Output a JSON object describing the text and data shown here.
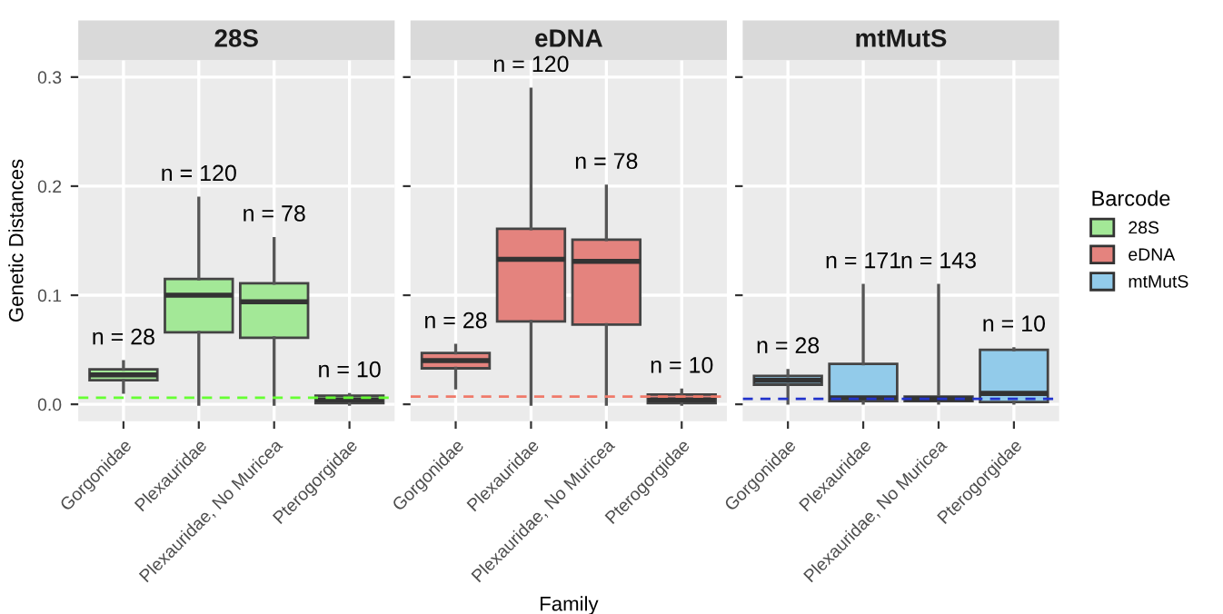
{
  "chart_data": [
    {
      "type": "box",
      "title": "28S",
      "ylabel": "Genetic Distances",
      "categories": [
        "Gorgonidae",
        "Plexauridae",
        "Plexauridae, No Muricea",
        "Pterogorgidae"
      ],
      "ylim": [
        -0.0155,
        0.3155
      ],
      "yticks": [
        {
          "value": 0,
          "label": "0.0"
        },
        0.1,
        0.2,
        0.3
      ],
      "grid": true,
      "series": [
        {
          "name": "28S",
          "color": "#a3e897",
          "boxes": [
            {
              "low": 0.011,
              "q1": 0.022,
              "median": 0.027,
              "q3": 0.032,
              "high": 0.039
            },
            {
              "low": 0,
              "q1": 0.066,
              "median": 0.1,
              "q3": 0.115,
              "high": 0.189
            },
            {
              "low": 0,
              "q1": 0.061,
              "median": 0.094,
              "q3": 0.111,
              "high": 0.152
            },
            {
              "low": 0,
              "q1": 0.001,
              "median": 0.004,
              "q3": 0.008,
              "high": 0.009
            }
          ]
        }
      ],
      "ref_lines": [
        {
          "axis": "y",
          "value": 0.006,
          "color": "#66ff33",
          "line_style": "dashed"
        }
      ],
      "annotations": [
        "n = 28",
        "n = 120",
        "n = 78",
        "n = 10"
      ]
    },
    {
      "type": "box",
      "title": "eDNA",
      "xlabel": "Family",
      "categories": [
        "Gorgonidae",
        "Plexauridae",
        "Plexauridae, No Muricea",
        "Pterogorgidae"
      ],
      "ylim": [
        -0.0155,
        0.3155
      ],
      "yticks": [
        0,
        0.1,
        0.2,
        0.3
      ],
      "grid": true,
      "tick_labels": "x",
      "series": [
        {
          "name": "eDNA",
          "color": "#e4837e",
          "boxes": [
            {
              "low": 0.015,
              "q1": 0.033,
              "median": 0.04,
              "q3": 0.047,
              "high": 0.054
            },
            {
              "low": 0,
              "q1": 0.076,
              "median": 0.133,
              "q3": 0.161,
              "high": 0.289
            },
            {
              "low": 0,
              "q1": 0.073,
              "median": 0.131,
              "q3": 0.151,
              "high": 0.2
            },
            {
              "low": 0,
              "q1": 0.001,
              "median": 0.004,
              "q3": 0.009,
              "high": 0.013
            }
          ]
        }
      ],
      "ref_lines": [
        {
          "axis": "y",
          "value": 0.007,
          "color": "#f07a6a",
          "line_style": "dashed"
        }
      ],
      "annotations": [
        "n = 28",
        "n = 120",
        "n = 78",
        "n = 10"
      ]
    },
    {
      "type": "box",
      "title": "mtMutS",
      "categories": [
        "Gorgonidae",
        "Plexauridae",
        "Plexauridae, No Muricea",
        "Pterogorgidae"
      ],
      "ylim": [
        -0.0155,
        0.3155
      ],
      "yticks": [
        0,
        0.1,
        0.2,
        0.3
      ],
      "grid": true,
      "tick_labels": "x",
      "legend": "right",
      "legend_title": "Barcode",
      "series": [
        {
          "name": "mtMutS",
          "color": "#92cbea",
          "boxes": [
            {
              "low": 0.001,
              "q1": 0.018,
              "median": 0.022,
              "q3": 0.026,
              "high": 0.031
            },
            {
              "low": 0.001,
              "q1": 0.003,
              "median": 0.006,
              "q3": 0.037,
              "high": 0.109
            },
            {
              "low": 0.001,
              "q1": 0.003,
              "median": 0.005,
              "q3": 0.007,
              "high": 0.109
            },
            {
              "low": 0.001,
              "q1": 0.002,
              "median": 0.01,
              "q3": 0.05,
              "high": 0.051
            }
          ]
        }
      ],
      "ref_lines": [
        {
          "axis": "y",
          "value": 0.005,
          "color": "#2233cc",
          "line_style": "dashed"
        }
      ],
      "annotations": [
        "n = 28",
        "n = 171",
        "n = 143",
        "n = 10"
      ]
    }
  ]
}
